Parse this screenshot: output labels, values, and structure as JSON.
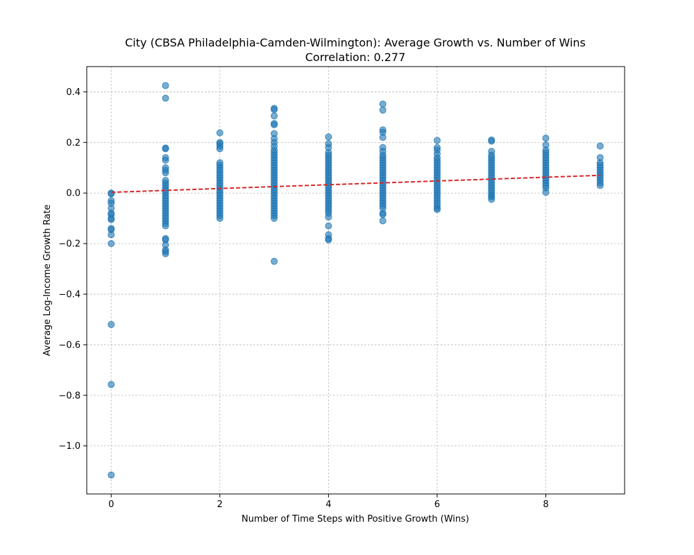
{
  "chart_data": {
    "type": "scatter",
    "title": "City (CBSA Philadelphia-Camden-Wilmington): Average Growth vs. Number of Wins",
    "subtitle": "Correlation: 0.277",
    "xlabel": "Number of Time Steps with Positive Growth (Wins)",
    "ylabel": "Average Log-Income Growth Rate",
    "xlim": [
      -0.45,
      9.45
    ],
    "ylim": [
      -1.19,
      0.5
    ],
    "xticks": [
      0,
      2,
      4,
      6,
      8
    ],
    "xtick_labels": [
      "0",
      "2",
      "4",
      "6",
      "8"
    ],
    "yticks": [
      -1.0,
      -0.8,
      -0.6,
      -0.4,
      -0.2,
      0.0,
      0.2,
      0.4
    ],
    "ytick_labels": [
      "−1.0",
      "−0.8",
      "−0.6",
      "−0.4",
      "−0.2",
      "0.0",
      "0.2",
      "0.4"
    ],
    "grid": true,
    "series": [
      {
        "color": "#1f77b4",
        "points": [
          [
            0,
            0.0
          ],
          [
            0,
            -0.003
          ],
          [
            0,
            -0.03
          ],
          [
            0,
            -0.04
          ],
          [
            0,
            -0.06
          ],
          [
            0,
            -0.08
          ],
          [
            0,
            -0.085
          ],
          [
            0,
            -0.1
          ],
          [
            0,
            -0.105
          ],
          [
            0,
            -0.14
          ],
          [
            0,
            -0.145
          ],
          [
            0,
            -0.165
          ],
          [
            0,
            -0.2
          ],
          [
            0,
            -0.52
          ],
          [
            0,
            -0.757
          ],
          [
            0,
            -1.115
          ],
          [
            1,
            0.425
          ],
          [
            1,
            0.375
          ],
          [
            1,
            0.178
          ],
          [
            1,
            0.175
          ],
          [
            1,
            0.14
          ],
          [
            1,
            0.13
          ],
          [
            1,
            0.1
          ],
          [
            1,
            0.09
          ],
          [
            1,
            0.08
          ],
          [
            1,
            0.05
          ],
          [
            1,
            0.04
          ],
          [
            1,
            0.03
          ],
          [
            1,
            0.02
          ],
          [
            1,
            0.01
          ],
          [
            1,
            0.0
          ],
          [
            1,
            -0.01
          ],
          [
            1,
            -0.02
          ],
          [
            1,
            -0.03
          ],
          [
            1,
            -0.04
          ],
          [
            1,
            -0.05
          ],
          [
            1,
            -0.06
          ],
          [
            1,
            -0.07
          ],
          [
            1,
            -0.08
          ],
          [
            1,
            -0.09
          ],
          [
            1,
            -0.1
          ],
          [
            1,
            -0.11
          ],
          [
            1,
            -0.12
          ],
          [
            1,
            -0.13
          ],
          [
            1,
            -0.18
          ],
          [
            1,
            -0.185
          ],
          [
            1,
            -0.205
          ],
          [
            1,
            -0.225
          ],
          [
            1,
            -0.232
          ],
          [
            1,
            -0.24
          ],
          [
            2,
            0.238
          ],
          [
            2,
            0.2
          ],
          [
            2,
            0.195
          ],
          [
            2,
            0.185
          ],
          [
            2,
            0.175
          ],
          [
            2,
            0.12
          ],
          [
            2,
            0.11
          ],
          [
            2,
            0.1
          ],
          [
            2,
            0.09
          ],
          [
            2,
            0.08
          ],
          [
            2,
            0.07
          ],
          [
            2,
            0.06
          ],
          [
            2,
            0.05
          ],
          [
            2,
            0.04
          ],
          [
            2,
            0.03
          ],
          [
            2,
            0.02
          ],
          [
            2,
            0.01
          ],
          [
            2,
            0.0
          ],
          [
            2,
            -0.01
          ],
          [
            2,
            -0.02
          ],
          [
            2,
            -0.03
          ],
          [
            2,
            -0.04
          ],
          [
            2,
            -0.05
          ],
          [
            2,
            -0.06
          ],
          [
            2,
            -0.07
          ],
          [
            2,
            -0.08
          ],
          [
            2,
            -0.09
          ],
          [
            2,
            -0.1
          ],
          [
            3,
            0.335
          ],
          [
            3,
            0.33
          ],
          [
            3,
            0.305
          ],
          [
            3,
            0.275
          ],
          [
            3,
            0.27
          ],
          [
            3,
            0.235
          ],
          [
            3,
            0.215
          ],
          [
            3,
            0.2
          ],
          [
            3,
            0.185
          ],
          [
            3,
            0.17
          ],
          [
            3,
            0.16
          ],
          [
            3,
            0.15
          ],
          [
            3,
            0.14
          ],
          [
            3,
            0.13
          ],
          [
            3,
            0.12
          ],
          [
            3,
            0.11
          ],
          [
            3,
            0.1
          ],
          [
            3,
            0.09
          ],
          [
            3,
            0.08
          ],
          [
            3,
            0.07
          ],
          [
            3,
            0.06
          ],
          [
            3,
            0.05
          ],
          [
            3,
            0.04
          ],
          [
            3,
            0.03
          ],
          [
            3,
            0.02
          ],
          [
            3,
            0.01
          ],
          [
            3,
            0.0
          ],
          [
            3,
            -0.01
          ],
          [
            3,
            -0.02
          ],
          [
            3,
            -0.03
          ],
          [
            3,
            -0.04
          ],
          [
            3,
            -0.05
          ],
          [
            3,
            -0.06
          ],
          [
            3,
            -0.07
          ],
          [
            3,
            -0.08
          ],
          [
            3,
            -0.09
          ],
          [
            3,
            -0.1
          ],
          [
            3,
            -0.27
          ],
          [
            4,
            0.222
          ],
          [
            4,
            0.195
          ],
          [
            4,
            0.18
          ],
          [
            4,
            0.16
          ],
          [
            4,
            0.15
          ],
          [
            4,
            0.14
          ],
          [
            4,
            0.13
          ],
          [
            4,
            0.12
          ],
          [
            4,
            0.11
          ],
          [
            4,
            0.1
          ],
          [
            4,
            0.09
          ],
          [
            4,
            0.08
          ],
          [
            4,
            0.07
          ],
          [
            4,
            0.06
          ],
          [
            4,
            0.05
          ],
          [
            4,
            0.04
          ],
          [
            4,
            0.03
          ],
          [
            4,
            0.02
          ],
          [
            4,
            0.01
          ],
          [
            4,
            0.0
          ],
          [
            4,
            -0.01
          ],
          [
            4,
            -0.02
          ],
          [
            4,
            -0.03
          ],
          [
            4,
            -0.04
          ],
          [
            4,
            -0.05
          ],
          [
            4,
            -0.06
          ],
          [
            4,
            -0.07
          ],
          [
            4,
            -0.08
          ],
          [
            4,
            -0.095
          ],
          [
            4,
            -0.13
          ],
          [
            4,
            -0.165
          ],
          [
            4,
            -0.18
          ],
          [
            4,
            -0.185
          ],
          [
            5,
            0.352
          ],
          [
            5,
            0.328
          ],
          [
            5,
            0.25
          ],
          [
            5,
            0.24
          ],
          [
            5,
            0.22
          ],
          [
            5,
            0.18
          ],
          [
            5,
            0.165
          ],
          [
            5,
            0.15
          ],
          [
            5,
            0.14
          ],
          [
            5,
            0.13
          ],
          [
            5,
            0.12
          ],
          [
            5,
            0.11
          ],
          [
            5,
            0.1
          ],
          [
            5,
            0.09
          ],
          [
            5,
            0.08
          ],
          [
            5,
            0.07
          ],
          [
            5,
            0.06
          ],
          [
            5,
            0.05
          ],
          [
            5,
            0.04
          ],
          [
            5,
            0.03
          ],
          [
            5,
            0.02
          ],
          [
            5,
            0.01
          ],
          [
            5,
            0.0
          ],
          [
            5,
            -0.01
          ],
          [
            5,
            -0.02
          ],
          [
            5,
            -0.03
          ],
          [
            5,
            -0.04
          ],
          [
            5,
            -0.05
          ],
          [
            5,
            -0.06
          ],
          [
            5,
            -0.08
          ],
          [
            5,
            -0.085
          ],
          [
            5,
            -0.11
          ],
          [
            6,
            0.208
          ],
          [
            6,
            0.18
          ],
          [
            6,
            0.17
          ],
          [
            6,
            0.155
          ],
          [
            6,
            0.14
          ],
          [
            6,
            0.13
          ],
          [
            6,
            0.12
          ],
          [
            6,
            0.11
          ],
          [
            6,
            0.1
          ],
          [
            6,
            0.09
          ],
          [
            6,
            0.08
          ],
          [
            6,
            0.07
          ],
          [
            6,
            0.06
          ],
          [
            6,
            0.05
          ],
          [
            6,
            0.04
          ],
          [
            6,
            0.03
          ],
          [
            6,
            0.02
          ],
          [
            6,
            0.01
          ],
          [
            6,
            0.0
          ],
          [
            6,
            -0.01
          ],
          [
            6,
            -0.02
          ],
          [
            6,
            -0.03
          ],
          [
            6,
            -0.04
          ],
          [
            6,
            -0.05
          ],
          [
            6,
            -0.06
          ],
          [
            6,
            -0.065
          ],
          [
            7,
            0.21
          ],
          [
            7,
            0.205
          ],
          [
            7,
            0.165
          ],
          [
            7,
            0.15
          ],
          [
            7,
            0.14
          ],
          [
            7,
            0.13
          ],
          [
            7,
            0.12
          ],
          [
            7,
            0.11
          ],
          [
            7,
            0.1
          ],
          [
            7,
            0.09
          ],
          [
            7,
            0.08
          ],
          [
            7,
            0.07
          ],
          [
            7,
            0.06
          ],
          [
            7,
            0.05
          ],
          [
            7,
            0.04
          ],
          [
            7,
            0.03
          ],
          [
            7,
            0.02
          ],
          [
            7,
            0.01
          ],
          [
            7,
            0.0
          ],
          [
            7,
            -0.01
          ],
          [
            7,
            -0.015
          ],
          [
            7,
            -0.025
          ],
          [
            8,
            0.217
          ],
          [
            8,
            0.19
          ],
          [
            8,
            0.17
          ],
          [
            8,
            0.16
          ],
          [
            8,
            0.15
          ],
          [
            8,
            0.14
          ],
          [
            8,
            0.13
          ],
          [
            8,
            0.12
          ],
          [
            8,
            0.11
          ],
          [
            8,
            0.1
          ],
          [
            8,
            0.09
          ],
          [
            8,
            0.08
          ],
          [
            8,
            0.07
          ],
          [
            8,
            0.06
          ],
          [
            8,
            0.05
          ],
          [
            8,
            0.04
          ],
          [
            8,
            0.03
          ],
          [
            8,
            0.02
          ],
          [
            8,
            0.003
          ],
          [
            9,
            0.186
          ],
          [
            9,
            0.14
          ],
          [
            9,
            0.12
          ],
          [
            9,
            0.11
          ],
          [
            9,
            0.1
          ],
          [
            9,
            0.09
          ],
          [
            9,
            0.08
          ],
          [
            9,
            0.07
          ],
          [
            9,
            0.06
          ],
          [
            9,
            0.05
          ],
          [
            9,
            0.04
          ],
          [
            9,
            0.03
          ]
        ]
      }
    ],
    "trendline": {
      "color": "#d62728",
      "style": "dashed",
      "x": [
        0,
        9
      ],
      "y": [
        0.003,
        0.07
      ]
    }
  }
}
